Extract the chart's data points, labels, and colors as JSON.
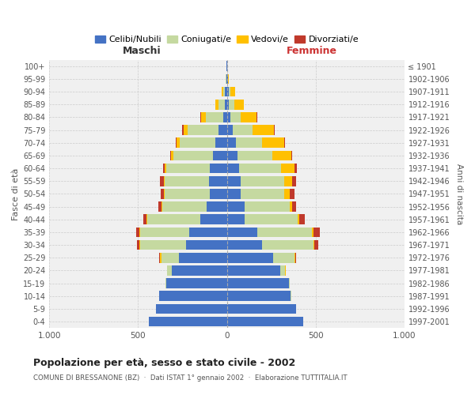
{
  "age_groups": [
    "0-4",
    "5-9",
    "10-14",
    "15-19",
    "20-24",
    "25-29",
    "30-34",
    "35-39",
    "40-44",
    "45-49",
    "50-54",
    "55-59",
    "60-64",
    "65-69",
    "70-74",
    "75-79",
    "80-84",
    "85-89",
    "90-94",
    "95-99",
    "100+"
  ],
  "birth_years": [
    "1997-2001",
    "1992-1996",
    "1987-1991",
    "1982-1986",
    "1977-1981",
    "1972-1976",
    "1967-1971",
    "1962-1966",
    "1957-1961",
    "1952-1956",
    "1947-1951",
    "1942-1946",
    "1937-1941",
    "1932-1936",
    "1927-1931",
    "1922-1926",
    "1917-1921",
    "1912-1916",
    "1907-1911",
    "1902-1906",
    "≤ 1901"
  ],
  "maschi": {
    "celibi": [
      440,
      400,
      380,
      340,
      310,
      270,
      230,
      210,
      150,
      115,
      95,
      100,
      95,
      80,
      65,
      45,
      22,
      12,
      10,
      3,
      2
    ],
    "coniugati": [
      0,
      0,
      2,
      5,
      25,
      100,
      260,
      280,
      300,
      250,
      255,
      250,
      245,
      220,
      200,
      175,
      95,
      35,
      10,
      2,
      0
    ],
    "vedovi": [
      0,
      0,
      0,
      0,
      2,
      5,
      2,
      2,
      2,
      2,
      3,
      5,
      10,
      15,
      20,
      25,
      30,
      18,
      8,
      2,
      0
    ],
    "divorziati": [
      0,
      0,
      0,
      0,
      2,
      5,
      15,
      20,
      20,
      20,
      20,
      20,
      10,
      5,
      5,
      5,
      2,
      0,
      0,
      0,
      0
    ]
  },
  "femmine": {
    "nubili": [
      430,
      390,
      360,
      350,
      300,
      260,
      200,
      170,
      100,
      100,
      80,
      80,
      70,
      60,
      50,
      35,
      18,
      12,
      10,
      5,
      2
    ],
    "coniugate": [
      0,
      0,
      2,
      5,
      30,
      120,
      290,
      310,
      300,
      255,
      245,
      245,
      235,
      195,
      150,
      110,
      60,
      30,
      10,
      2,
      0
    ],
    "vedove": [
      0,
      0,
      0,
      0,
      2,
      5,
      5,
      8,
      10,
      15,
      30,
      45,
      75,
      110,
      125,
      120,
      90,
      55,
      25,
      5,
      0
    ],
    "divorziate": [
      0,
      0,
      0,
      0,
      2,
      5,
      20,
      35,
      30,
      20,
      25,
      20,
      15,
      5,
      5,
      5,
      2,
      0,
      0,
      0,
      0
    ]
  },
  "color_celibi": "#4472c4",
  "color_coniugati": "#c5d9a0",
  "color_vedovi": "#ffc000",
  "color_divorziati": "#c0392b",
  "bg_color": "#f0f0f0",
  "grid_color": "#cccccc",
  "title": "Popolazione per età, sesso e stato civile - 2002",
  "subtitle": "COMUNE DI BRESSANONE (BZ)  ·  Dati ISTAT 1° gennaio 2002  ·  Elaborazione TUTTITALIA.IT",
  "xlabel_left": "Maschi",
  "xlabel_right": "Femmine",
  "ylabel_left": "Fasce di età",
  "ylabel_right": "Anni di nascita",
  "xlim": 1000
}
